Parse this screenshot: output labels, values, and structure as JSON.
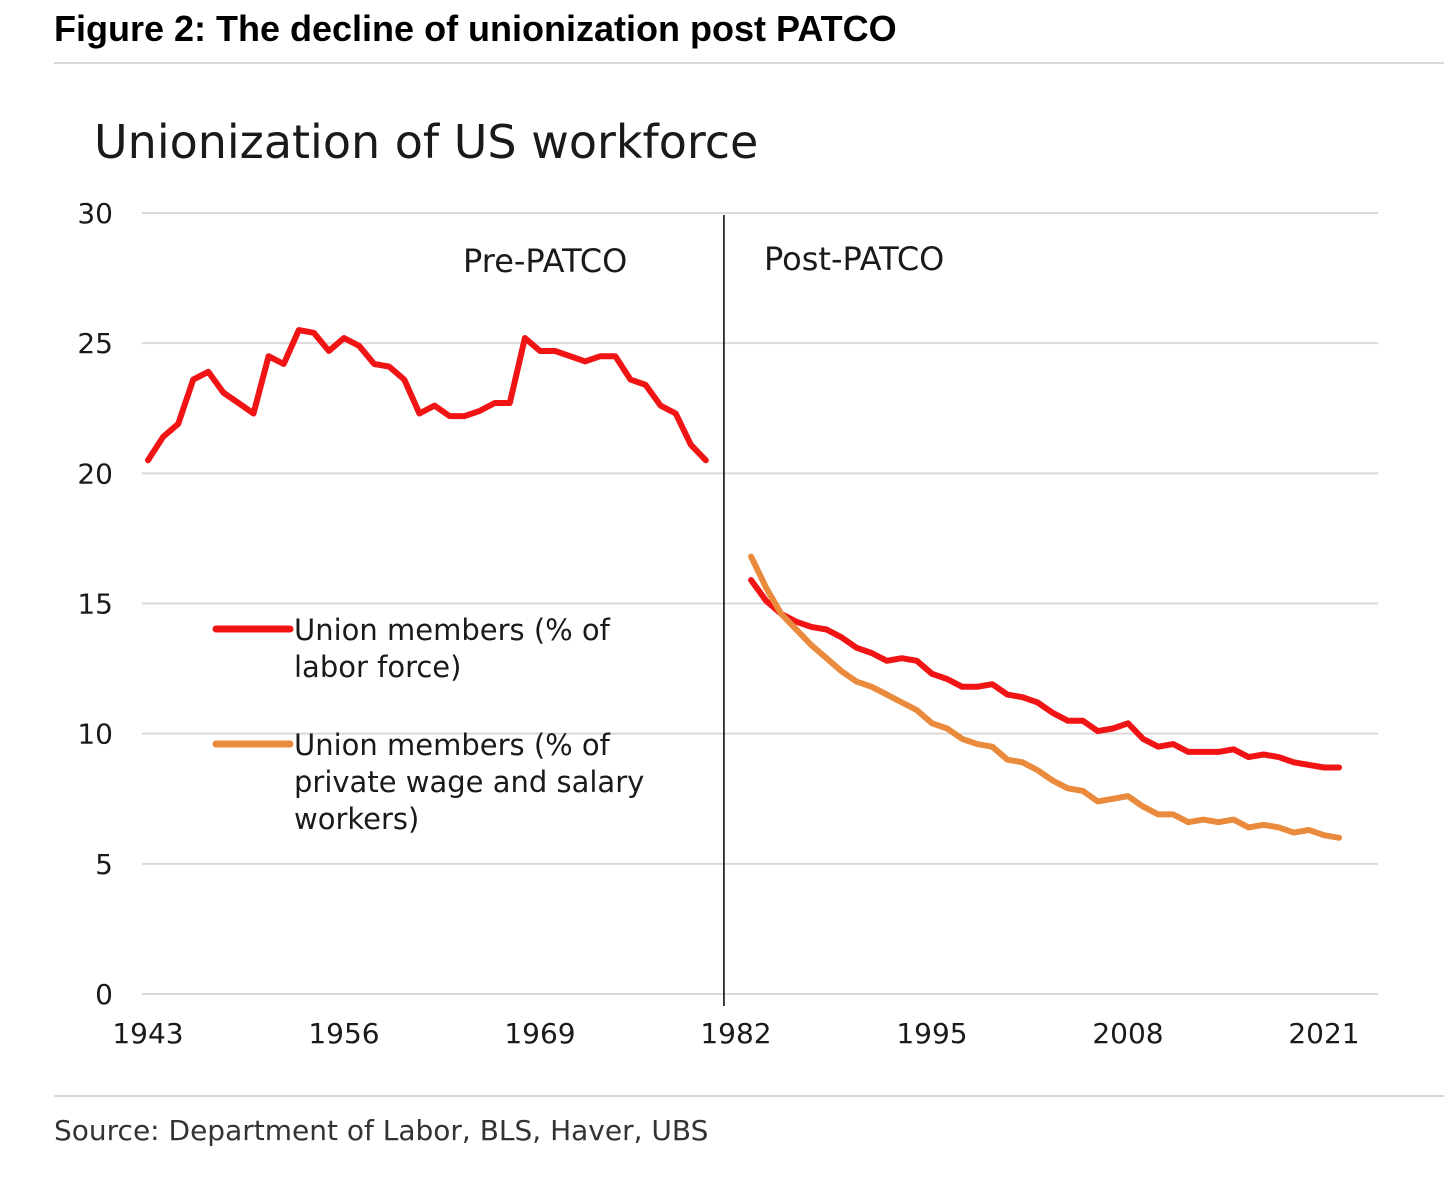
{
  "figure_title": "Figure 2: The decline of unionization post PATCO",
  "source": "Source: Department of Labor, BLS, Haver, UBS",
  "colors": {
    "labor_force": "#f01414",
    "private": "#ea8a3c",
    "grid": "#d9d9d9",
    "divider": "#000000"
  },
  "chart_data": {
    "type": "line",
    "title": "Unionization of US workforce",
    "xlabel": "",
    "ylabel": "",
    "xlim": [
      1943,
      2025
    ],
    "ylim": [
      0,
      30
    ],
    "yticks": [
      0,
      5,
      10,
      15,
      20,
      25,
      30
    ],
    "xticks": [
      1943,
      1956,
      1969,
      1982,
      1995,
      2008,
      2021
    ],
    "grid": true,
    "legend_placement": "center-left",
    "divider_year": 1981.2,
    "annotations": [
      {
        "text": "Pre-PATCO",
        "x": 1970,
        "y": 28.2
      },
      {
        "text": "Post-PATCO",
        "x": 1985,
        "y": 28.3
      }
    ],
    "series": [
      {
        "name": "Union members (% of labor force)",
        "color": "#f01414",
        "segments": [
          {
            "x": [
              1943,
              1944,
              1945,
              1946,
              1947,
              1948,
              1949,
              1950,
              1951,
              1952,
              1953,
              1954,
              1955,
              1956,
              1957,
              1958,
              1959,
              1960,
              1961,
              1962,
              1963,
              1964,
              1965,
              1966,
              1967,
              1968,
              1969,
              1970,
              1971,
              1972,
              1973,
              1974,
              1975,
              1976,
              1977,
              1978,
              1979,
              1980
            ],
            "y": [
              20.5,
              21.4,
              21.9,
              23.6,
              23.9,
              23.1,
              22.7,
              22.3,
              24.5,
              24.2,
              25.5,
              25.4,
              24.7,
              25.2,
              24.9,
              24.2,
              24.1,
              23.6,
              22.3,
              22.6,
              22.2,
              22.2,
              22.4,
              22.7,
              22.7,
              25.2,
              24.7,
              24.7,
              24.5,
              24.3,
              24.5,
              24.5,
              23.6,
              23.4,
              22.6,
              22.3,
              21.1,
              20.5
            ]
          },
          {
            "x": [
              1983,
              1984,
              1985,
              1986,
              1987,
              1988,
              1989,
              1990,
              1991,
              1992,
              1993,
              1994,
              1995,
              1996,
              1997,
              1998,
              1999,
              2000,
              2001,
              2002,
              2003,
              2004,
              2005,
              2006,
              2007,
              2008,
              2009,
              2010,
              2011,
              2012,
              2013,
              2014,
              2015,
              2016,
              2017,
              2018,
              2019,
              2020,
              2021,
              2022
            ],
            "y": [
              15.9,
              15.1,
              14.6,
              14.3,
              14.1,
              14.0,
              13.7,
              13.3,
              13.1,
              12.8,
              12.9,
              12.8,
              12.3,
              12.1,
              11.8,
              11.8,
              11.9,
              11.5,
              11.4,
              11.2,
              10.8,
              10.5,
              10.5,
              10.1,
              10.2,
              10.4,
              9.8,
              9.5,
              9.6,
              9.3,
              9.3,
              9.3,
              9.4,
              9.1,
              9.2,
              9.1,
              8.9,
              8.8,
              8.7,
              8.7
            ]
          }
        ]
      },
      {
        "name": "Union members (% of private wage and salary workers)",
        "color": "#ea8a3c",
        "segments": [
          {
            "x": [
              1983,
              1984,
              1985,
              1986,
              1987,
              1988,
              1989,
              1990,
              1991,
              1992,
              1993,
              1994,
              1995,
              1996,
              1997,
              1998,
              1999,
              2000,
              2001,
              2002,
              2003,
              2004,
              2005,
              2006,
              2007,
              2008,
              2009,
              2010,
              2011,
              2012,
              2013,
              2014,
              2015,
              2016,
              2017,
              2018,
              2019,
              2020,
              2021,
              2022
            ],
            "y": [
              16.8,
              15.6,
              14.6,
              14.0,
              13.4,
              12.9,
              12.4,
              12.0,
              11.8,
              11.5,
              11.2,
              10.9,
              10.4,
              10.2,
              9.8,
              9.6,
              9.5,
              9.0,
              8.9,
              8.6,
              8.2,
              7.9,
              7.8,
              7.4,
              7.5,
              7.6,
              7.2,
              6.9,
              6.9,
              6.6,
              6.7,
              6.6,
              6.7,
              6.4,
              6.5,
              6.4,
              6.2,
              6.3,
              6.1,
              6.0
            ]
          }
        ]
      }
    ]
  }
}
